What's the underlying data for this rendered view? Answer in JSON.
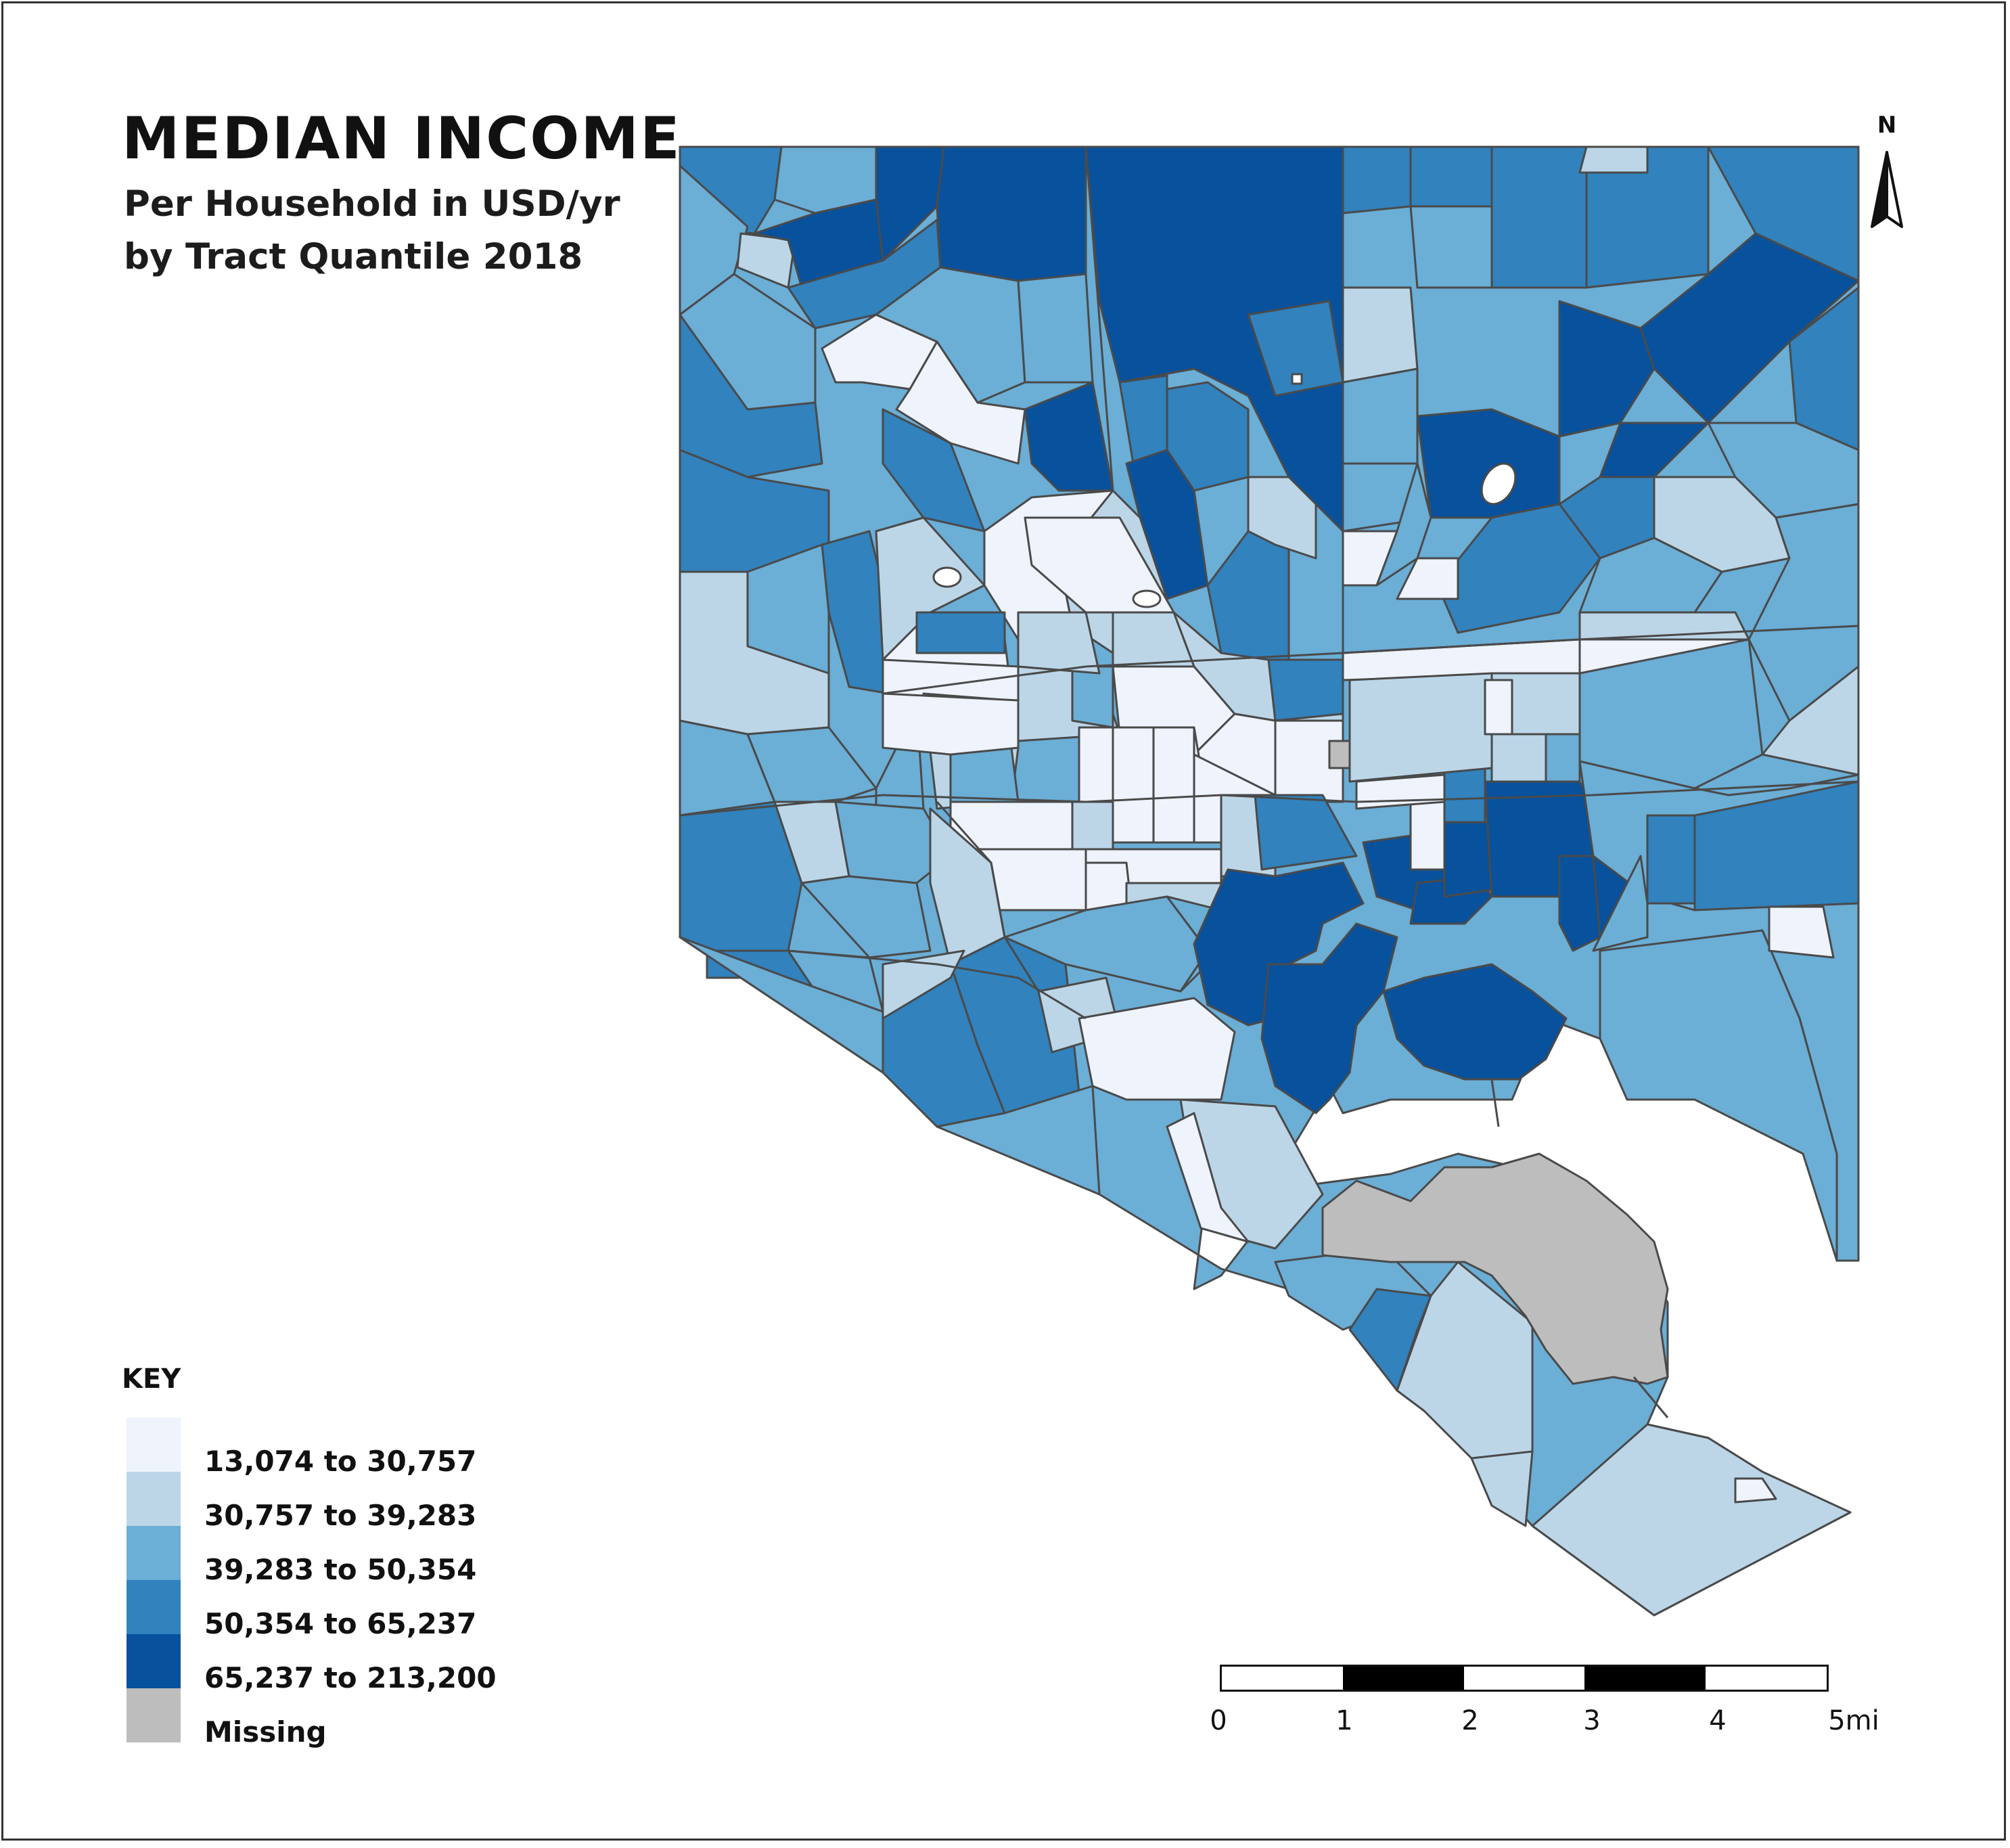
{
  "title": "MEDIAN INCOME",
  "subtitle": [
    "Per Household in USD/yr",
    "by Tract Quantile 2018"
  ],
  "legend": {
    "title": "KEY",
    "items": [
      {
        "label": "13,074 to 30,757",
        "color": "#eef3fc"
      },
      {
        "label": "30,757 to 39,283",
        "color": "#bcd6e8"
      },
      {
        "label": "39,283 to 50,354",
        "color": "#6baed6"
      },
      {
        "label": "50,354 to 65,237",
        "color": "#3182bd"
      },
      {
        "label": "65,237 to 213,200",
        "color": "#08519c"
      },
      {
        "label": "Missing",
        "color": "#bdbdbd"
      }
    ]
  },
  "north_arrow": {
    "label": "N",
    "icon": "north-arrow-icon"
  },
  "scale_bar": {
    "labels": [
      "0",
      "1",
      "2",
      "3",
      "4",
      "5mi"
    ],
    "unit": "mi",
    "max": 5
  }
}
